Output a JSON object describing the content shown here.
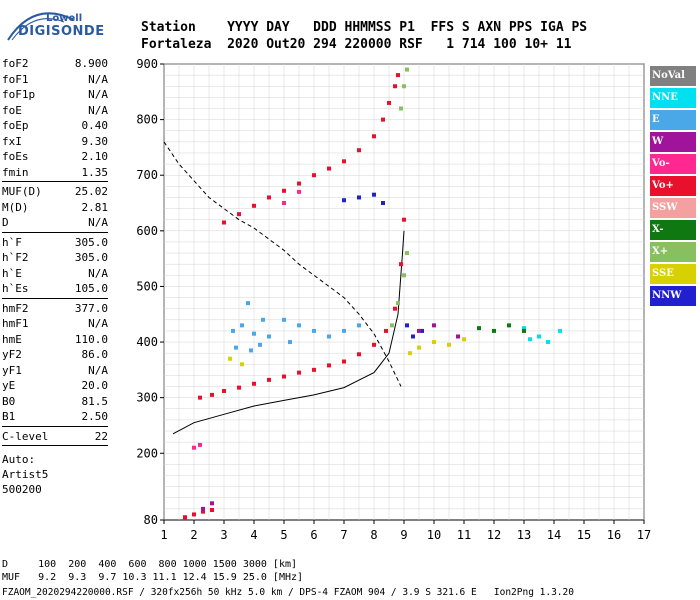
{
  "logo": {
    "brand": "Lowell",
    "name": "DIGISONDE"
  },
  "header": {
    "line1": "Station    YYYY DAY   DDD HHMMSS P1  FFS S AXN PPS IGA PS",
    "line2": "Fortaleza  2020 Out20 294 220000 RSF   1 714 100 10+ 11"
  },
  "params": [
    {
      "k": "foF2",
      "v": "8.900"
    },
    {
      "k": "foF1",
      "v": "N/A"
    },
    {
      "k": "foF1p",
      "v": "N/A"
    },
    {
      "k": "foE",
      "v": "N/A"
    },
    {
      "k": "foEp",
      "v": "0.40"
    },
    {
      "k": "fxI",
      "v": "9.30"
    },
    {
      "k": "foEs",
      "v": "2.10"
    },
    {
      "k": "fmin",
      "v": "1.35"
    },
    {
      "sep": true
    },
    {
      "k": "MUF(D)",
      "v": "25.02"
    },
    {
      "k": "M(D)",
      "v": "2.81"
    },
    {
      "k": "D",
      "v": "N/A"
    },
    {
      "sep": true
    },
    {
      "k": "h`F",
      "v": "305.0"
    },
    {
      "k": "h`F2",
      "v": "305.0"
    },
    {
      "k": "h`E",
      "v": "N/A"
    },
    {
      "k": "h`Es",
      "v": "105.0"
    },
    {
      "sep": true
    },
    {
      "k": "hmF2",
      "v": "377.0"
    },
    {
      "k": "hmF1",
      "v": "N/A"
    },
    {
      "k": "hmE",
      "v": "110.0"
    },
    {
      "k": "yF2",
      "v": "86.0"
    },
    {
      "k": "yF1",
      "v": "N/A"
    },
    {
      "k": "yE",
      "v": "20.0"
    },
    {
      "k": "B0",
      "v": "81.5"
    },
    {
      "k": "B1",
      "v": "2.50"
    },
    {
      "sep": true
    },
    {
      "k": "C-level",
      "v": "22"
    },
    {
      "sep": true
    }
  ],
  "auto": [
    "Auto:",
    "Artist5",
    "500200"
  ],
  "legend": [
    {
      "label": "NoVal",
      "color": "#808080"
    },
    {
      "label": "NNE",
      "color": "#00e0f0"
    },
    {
      "label": "E",
      "color": "#4aa8e8"
    },
    {
      "label": "W",
      "color": "#a0149b"
    },
    {
      "label": "Vo-",
      "color": "#ff2890"
    },
    {
      "label": "Vo+",
      "color": "#e8102c"
    },
    {
      "label": "SSW",
      "color": "#f4a0a0"
    },
    {
      "label": "X-",
      "color": "#107810"
    },
    {
      "label": "X+",
      "color": "#88c060"
    },
    {
      "label": "SSE",
      "color": "#d8d000"
    },
    {
      "label": "NNW",
      "color": "#2020d0"
    }
  ],
  "footer": {
    "d_line": "D     100  200  400  600  800 1000 1500 3000 [km]",
    "muf_line": "MUF   9.2  9.3  9.7 10.3 11.1 12.4 15.9 25.0 [MHz]",
    "file_line": "FZAOM_2020294220000.RSF / 320fx256h 50 kHz 5.0 km / DPS-4 FZAOM 904 / 3.9 S 321.6 E   Ion2Png 1.3.20"
  },
  "chart_data": {
    "type": "scatter",
    "xlim": [
      1,
      17
    ],
    "ylim": [
      80,
      900
    ],
    "x_ticks": [
      1,
      2,
      3,
      4,
      5,
      6,
      7,
      8,
      9,
      10,
      11,
      12,
      13,
      14,
      15,
      16,
      17
    ],
    "y_ticks": [
      80,
      200,
      300,
      400,
      500,
      600,
      700,
      800,
      900
    ],
    "grid": true,
    "legend_position": "right",
    "series": [
      {
        "name": "Vo+",
        "color": "#e8102c",
        "points": [
          [
            2.2,
            300
          ],
          [
            2.6,
            305
          ],
          [
            3.0,
            312
          ],
          [
            3.5,
            318
          ],
          [
            4.0,
            325
          ],
          [
            4.5,
            332
          ],
          [
            5.0,
            338
          ],
          [
            5.5,
            345
          ],
          [
            6.0,
            350
          ],
          [
            6.5,
            358
          ],
          [
            7.0,
            365
          ],
          [
            7.5,
            378
          ],
          [
            8.0,
            395
          ],
          [
            8.4,
            420
          ],
          [
            8.7,
            460
          ],
          [
            8.9,
            540
          ],
          [
            9.0,
            620
          ],
          [
            3.0,
            615
          ],
          [
            3.5,
            630
          ],
          [
            4.0,
            645
          ],
          [
            4.5,
            660
          ],
          [
            5.0,
            672
          ],
          [
            5.5,
            685
          ],
          [
            6.0,
            700
          ],
          [
            6.5,
            712
          ],
          [
            7.0,
            725
          ],
          [
            7.5,
            745
          ],
          [
            8.0,
            770
          ],
          [
            8.3,
            800
          ],
          [
            8.5,
            830
          ],
          [
            8.7,
            860
          ],
          [
            8.8,
            880
          ],
          [
            1.7,
            85
          ],
          [
            2.0,
            90
          ],
          [
            2.3,
            95
          ],
          [
            2.6,
            98
          ]
        ]
      },
      {
        "name": "X+",
        "color": "#88c060",
        "points": [
          [
            8.6,
            430
          ],
          [
            8.8,
            470
          ],
          [
            9.0,
            520
          ],
          [
            9.1,
            560
          ],
          [
            8.9,
            820
          ],
          [
            9.0,
            860
          ],
          [
            9.1,
            890
          ]
        ]
      },
      {
        "name": "E",
        "color": "#4aa8e8",
        "points": [
          [
            3.3,
            420
          ],
          [
            3.6,
            430
          ],
          [
            4.0,
            415
          ],
          [
            4.3,
            440
          ],
          [
            3.8,
            470
          ],
          [
            4.5,
            410
          ],
          [
            5.0,
            440
          ],
          [
            5.5,
            430
          ],
          [
            3.4,
            390
          ],
          [
            3.9,
            385
          ],
          [
            4.2,
            395
          ],
          [
            5.2,
            400
          ],
          [
            6.0,
            420
          ],
          [
            6.5,
            410
          ],
          [
            7.0,
            420
          ],
          [
            7.5,
            430
          ]
        ]
      },
      {
        "name": "NNW",
        "color": "#2020d0",
        "points": [
          [
            7.0,
            655
          ],
          [
            7.5,
            660
          ],
          [
            8.0,
            665
          ],
          [
            8.3,
            650
          ],
          [
            9.1,
            430
          ],
          [
            9.3,
            410
          ],
          [
            9.6,
            420
          ]
        ]
      },
      {
        "name": "NNE",
        "color": "#00e0f0",
        "points": [
          [
            13.2,
            405
          ],
          [
            13.5,
            410
          ],
          [
            13.8,
            400
          ],
          [
            14.2,
            420
          ],
          [
            13.0,
            425
          ]
        ]
      },
      {
        "name": "SSE",
        "color": "#d8d000",
        "points": [
          [
            9.2,
            380
          ],
          [
            9.5,
            390
          ],
          [
            10.0,
            400
          ],
          [
            10.5,
            395
          ],
          [
            11.0,
            405
          ],
          [
            3.2,
            370
          ],
          [
            3.6,
            360
          ]
        ]
      },
      {
        "name": "X-",
        "color": "#107810",
        "points": [
          [
            11.5,
            425
          ],
          [
            12.0,
            420
          ],
          [
            12.5,
            430
          ],
          [
            13.0,
            420
          ]
        ]
      },
      {
        "name": "W",
        "color": "#a0149b",
        "points": [
          [
            9.5,
            420
          ],
          [
            10.0,
            430
          ],
          [
            10.8,
            410
          ],
          [
            2.3,
            100
          ],
          [
            2.6,
            110
          ]
        ]
      },
      {
        "name": "Vo-",
        "color": "#ff2890",
        "points": [
          [
            5.0,
            650
          ],
          [
            5.5,
            670
          ],
          [
            2.0,
            210
          ],
          [
            2.2,
            215
          ]
        ]
      }
    ],
    "lines": [
      {
        "name": "profile",
        "style": "solid",
        "points": [
          [
            1.3,
            235
          ],
          [
            2.0,
            255
          ],
          [
            3.0,
            270
          ],
          [
            4.0,
            285
          ],
          [
            5.0,
            295
          ],
          [
            6.0,
            305
          ],
          [
            7.0,
            318
          ],
          [
            8.0,
            345
          ],
          [
            8.5,
            380
          ],
          [
            8.8,
            450
          ],
          [
            8.95,
            560
          ],
          [
            9.0,
            600
          ]
        ]
      },
      {
        "name": "MUF",
        "style": "dashed",
        "points": [
          [
            1.0,
            760
          ],
          [
            1.5,
            720
          ],
          [
            2.0,
            690
          ],
          [
            2.5,
            660
          ],
          [
            3.0,
            640
          ],
          [
            3.5,
            620
          ],
          [
            4.0,
            605
          ],
          [
            4.5,
            585
          ],
          [
            5.0,
            565
          ],
          [
            5.5,
            540
          ],
          [
            6.0,
            520
          ],
          [
            6.5,
            500
          ],
          [
            7.0,
            480
          ],
          [
            7.5,
            450
          ],
          [
            8.0,
            415
          ],
          [
            8.5,
            365
          ],
          [
            8.9,
            320
          ]
        ]
      }
    ]
  }
}
